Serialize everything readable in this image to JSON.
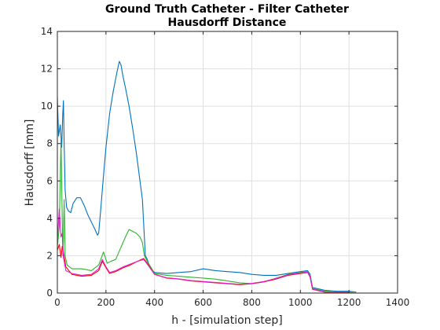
{
  "chart_data": {
    "type": "line",
    "title": [
      "Ground Truth Catheter - Filter Catheter",
      "Hausdorff Distance"
    ],
    "xlabel": "h - [simulation step]",
    "ylabel": "Hausdorff [mm]",
    "xlim": [
      0,
      1400
    ],
    "ylim": [
      0,
      14
    ],
    "xticks": [
      0,
      200,
      400,
      600,
      800,
      1000,
      1200,
      1400
    ],
    "yticks": [
      0,
      2,
      4,
      6,
      8,
      10,
      12,
      14
    ],
    "grid": true,
    "series": [
      {
        "color": "#0072bd",
        "points": [
          [
            0,
            10.5
          ],
          [
            5,
            8.4
          ],
          [
            12,
            9.0
          ],
          [
            18,
            7.8
          ],
          [
            22,
            9.5
          ],
          [
            25,
            10.3
          ],
          [
            28,
            8.0
          ],
          [
            32,
            5.5
          ],
          [
            38,
            4.6
          ],
          [
            45,
            4.4
          ],
          [
            55,
            4.3
          ],
          [
            65,
            4.8
          ],
          [
            80,
            5.1
          ],
          [
            95,
            5.1
          ],
          [
            110,
            4.7
          ],
          [
            125,
            4.2
          ],
          [
            140,
            3.8
          ],
          [
            155,
            3.4
          ],
          [
            165,
            3.1
          ],
          [
            170,
            3.2
          ],
          [
            178,
            4.4
          ],
          [
            188,
            6.0
          ],
          [
            200,
            7.8
          ],
          [
            215,
            9.6
          ],
          [
            230,
            10.8
          ],
          [
            245,
            11.8
          ],
          [
            255,
            12.4
          ],
          [
            262,
            12.2
          ],
          [
            270,
            11.6
          ],
          [
            280,
            11.0
          ],
          [
            295,
            10.0
          ],
          [
            310,
            8.8
          ],
          [
            325,
            7.5
          ],
          [
            340,
            6.0
          ],
          [
            350,
            5.0
          ],
          [
            358,
            3.0
          ],
          [
            362,
            2.0
          ],
          [
            370,
            1.8
          ],
          [
            380,
            1.4
          ],
          [
            400,
            1.1
          ],
          [
            450,
            1.05
          ],
          [
            500,
            1.1
          ],
          [
            550,
            1.15
          ],
          [
            600,
            1.3
          ],
          [
            650,
            1.2
          ],
          [
            700,
            1.15
          ],
          [
            750,
            1.1
          ],
          [
            800,
            1.0
          ],
          [
            850,
            0.95
          ],
          [
            900,
            0.95
          ],
          [
            950,
            1.05
          ],
          [
            1000,
            1.15
          ],
          [
            1030,
            1.2
          ],
          [
            1040,
            1.0
          ],
          [
            1050,
            0.3
          ],
          [
            1100,
            0.15
          ],
          [
            1150,
            0.1
          ],
          [
            1200,
            0.1
          ],
          [
            1230,
            0.05
          ]
        ]
      },
      {
        "color": "#2ab52a",
        "points": [
          [
            0,
            2.5
          ],
          [
            8,
            3.5
          ],
          [
            15,
            8.2
          ],
          [
            20,
            4.0
          ],
          [
            23,
            2.0
          ],
          [
            28,
            5.0
          ],
          [
            32,
            2.0
          ],
          [
            40,
            1.5
          ],
          [
            60,
            1.3
          ],
          [
            100,
            1.3
          ],
          [
            140,
            1.2
          ],
          [
            170,
            1.5
          ],
          [
            190,
            2.2
          ],
          [
            205,
            1.6
          ],
          [
            220,
            1.7
          ],
          [
            240,
            1.8
          ],
          [
            260,
            2.4
          ],
          [
            280,
            3.0
          ],
          [
            295,
            3.4
          ],
          [
            310,
            3.3
          ],
          [
            325,
            3.2
          ],
          [
            340,
            3.0
          ],
          [
            350,
            2.7
          ],
          [
            358,
            2.0
          ],
          [
            370,
            1.7
          ],
          [
            400,
            1.05
          ],
          [
            450,
            0.95
          ],
          [
            500,
            0.9
          ],
          [
            550,
            0.85
          ],
          [
            600,
            0.8
          ],
          [
            650,
            0.75
          ],
          [
            700,
            0.65
          ],
          [
            750,
            0.55
          ],
          [
            800,
            0.5
          ],
          [
            850,
            0.6
          ],
          [
            900,
            0.8
          ],
          [
            950,
            1.0
          ],
          [
            1000,
            1.1
          ],
          [
            1030,
            1.15
          ],
          [
            1040,
            0.9
          ],
          [
            1050,
            0.25
          ],
          [
            1100,
            0.1
          ],
          [
            1150,
            0.05
          ],
          [
            1220,
            0.05
          ]
        ]
      },
      {
        "color": "#ff0000",
        "points": [
          [
            0,
            2.3
          ],
          [
            8,
            2.6
          ],
          [
            15,
            1.9
          ],
          [
            20,
            2.5
          ],
          [
            25,
            2.2
          ],
          [
            35,
            1.4
          ],
          [
            60,
            1.0
          ],
          [
            100,
            0.9
          ],
          [
            140,
            0.95
          ],
          [
            170,
            1.2
          ],
          [
            185,
            1.7
          ],
          [
            198,
            1.4
          ],
          [
            215,
            1.05
          ],
          [
            240,
            1.15
          ],
          [
            270,
            1.35
          ],
          [
            300,
            1.5
          ],
          [
            330,
            1.7
          ],
          [
            355,
            1.85
          ],
          [
            370,
            1.6
          ],
          [
            400,
            1.0
          ],
          [
            450,
            0.8
          ],
          [
            500,
            0.75
          ],
          [
            550,
            0.65
          ],
          [
            600,
            0.6
          ],
          [
            650,
            0.55
          ],
          [
            700,
            0.5
          ],
          [
            750,
            0.45
          ],
          [
            800,
            0.5
          ],
          [
            850,
            0.6
          ],
          [
            900,
            0.75
          ],
          [
            950,
            0.95
          ],
          [
            1000,
            1.05
          ],
          [
            1030,
            1.1
          ],
          [
            1040,
            0.85
          ],
          [
            1050,
            0.2
          ],
          [
            1100,
            0.05
          ],
          [
            1200,
            0.05
          ]
        ]
      },
      {
        "color": "#e020d0",
        "points": [
          [
            0,
            2.8
          ],
          [
            8,
            4.5
          ],
          [
            15,
            3.0
          ],
          [
            20,
            3.2
          ],
          [
            25,
            1.9
          ],
          [
            35,
            1.2
          ],
          [
            60,
            1.05
          ],
          [
            100,
            0.95
          ],
          [
            140,
            1.0
          ],
          [
            170,
            1.3
          ],
          [
            185,
            1.8
          ],
          [
            198,
            1.45
          ],
          [
            215,
            1.1
          ],
          [
            240,
            1.2
          ],
          [
            270,
            1.4
          ],
          [
            300,
            1.55
          ],
          [
            330,
            1.7
          ],
          [
            355,
            1.8
          ],
          [
            370,
            1.55
          ],
          [
            400,
            1.0
          ],
          [
            450,
            0.82
          ],
          [
            500,
            0.76
          ],
          [
            550,
            0.67
          ],
          [
            600,
            0.62
          ],
          [
            650,
            0.57
          ],
          [
            700,
            0.52
          ],
          [
            750,
            0.47
          ],
          [
            800,
            0.52
          ],
          [
            850,
            0.62
          ],
          [
            900,
            0.78
          ],
          [
            950,
            0.98
          ],
          [
            1000,
            1.08
          ],
          [
            1030,
            1.12
          ],
          [
            1040,
            0.88
          ],
          [
            1050,
            0.22
          ],
          [
            1100,
            0.06
          ],
          [
            1200,
            0.06
          ]
        ]
      }
    ]
  }
}
